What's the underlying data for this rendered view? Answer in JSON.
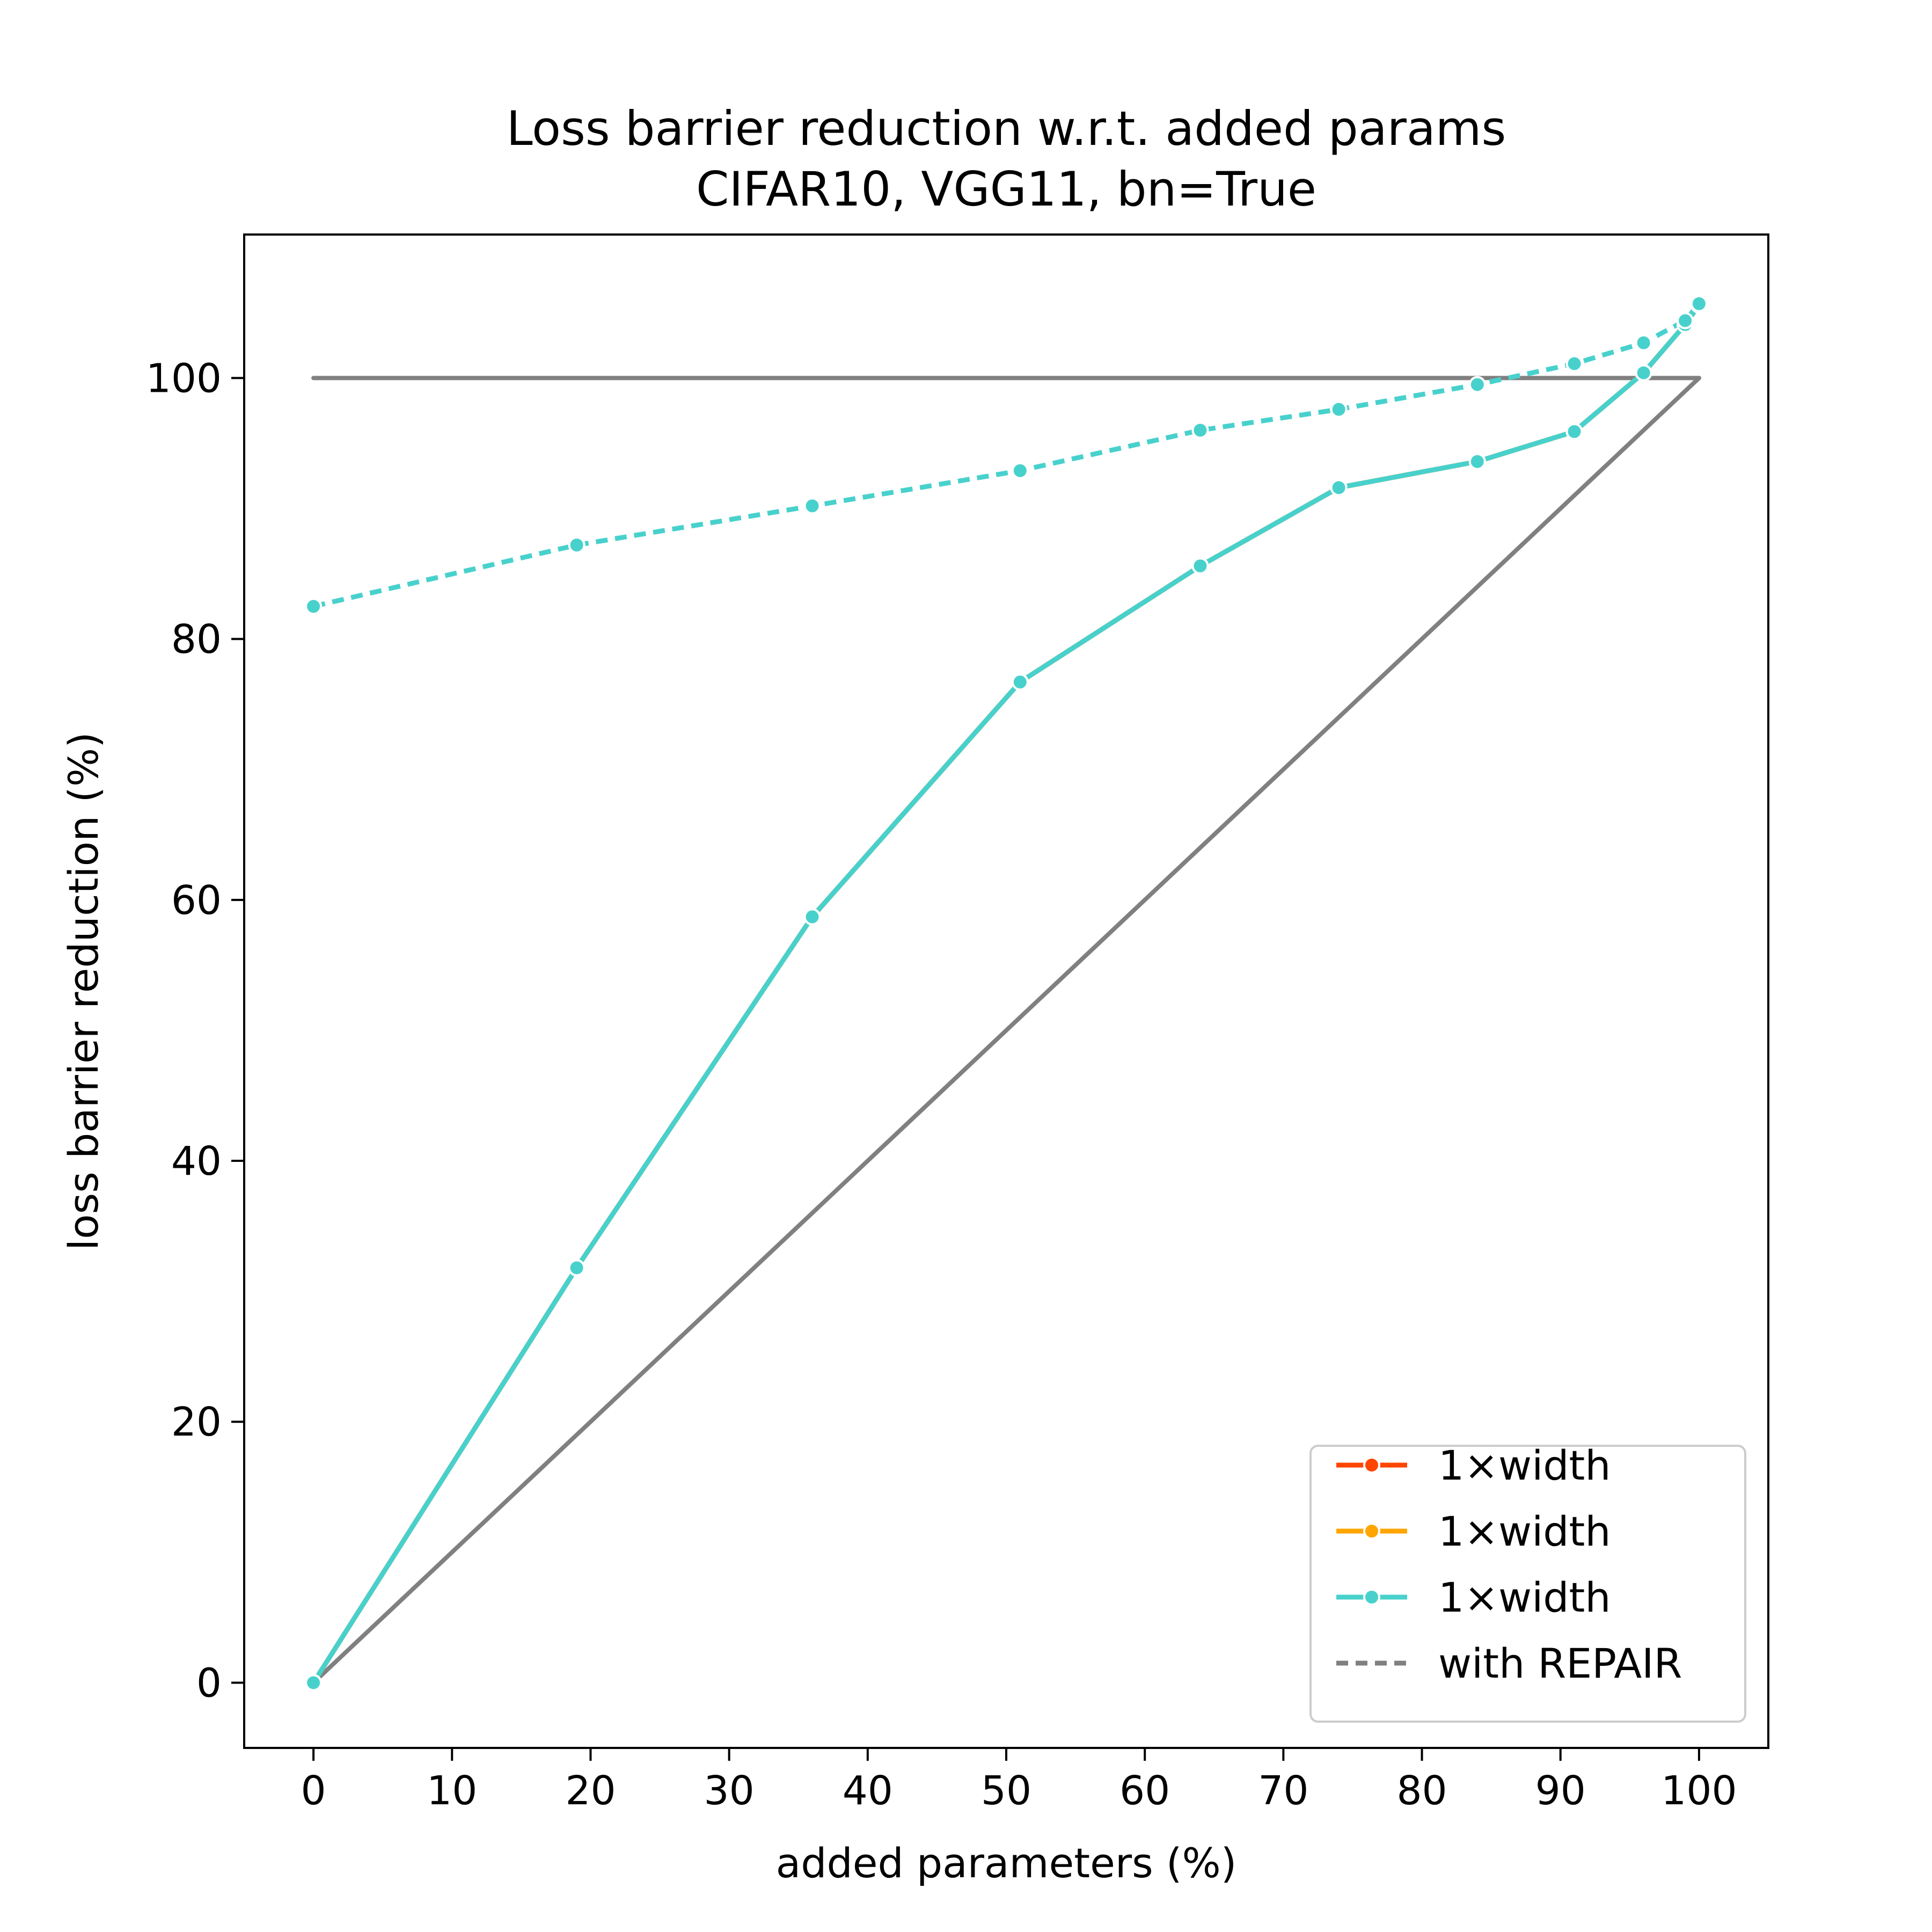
{
  "chart_data": {
    "type": "line",
    "title": "Loss barrier reduction w.r.t. added params",
    "subtitle": "CIFAR10, VGG11, bn=True",
    "xlabel": "added parameters (%)",
    "ylabel": "loss barrier reduction (%)",
    "xlim": [
      -5,
      105
    ],
    "ylim": [
      -5,
      111
    ],
    "xticks": [
      0,
      10,
      20,
      30,
      40,
      50,
      60,
      70,
      80,
      90,
      100
    ],
    "yticks": [
      0,
      20,
      40,
      60,
      80,
      100
    ],
    "grid": false,
    "legend_position": "bottom-right",
    "reference_lines": [
      {
        "x": [
          0,
          100
        ],
        "y": [
          100,
          100
        ],
        "color": "#808080"
      },
      {
        "x": [
          0,
          100
        ],
        "y": [
          0,
          100
        ],
        "color": "#808080"
      }
    ],
    "series": [
      {
        "name": "1×width",
        "color": "#ff4500",
        "style": "solid",
        "x": [
          0,
          19,
          36,
          51,
          64,
          74,
          84,
          91,
          96,
          99,
          100
        ],
        "y": [
          0,
          31.8,
          58.7,
          76.7,
          85.6,
          91.6,
          93.6,
          95.9,
          100.4,
          104.1,
          105.6
        ]
      },
      {
        "name": "1×width",
        "color": "#ffa500",
        "style": "solid",
        "x": [
          0,
          19,
          36,
          51,
          64,
          74,
          84,
          91,
          96,
          99,
          100
        ],
        "y": [
          0,
          31.8,
          58.7,
          76.7,
          85.6,
          91.6,
          93.6,
          95.9,
          100.4,
          104.1,
          105.6
        ]
      },
      {
        "name": "1×width",
        "color": "#48d1cc",
        "style": "solid",
        "x": [
          0,
          19,
          36,
          51,
          64,
          74,
          84,
          91,
          96,
          99,
          100
        ],
        "y": [
          0,
          31.8,
          58.7,
          76.7,
          85.6,
          91.6,
          93.6,
          95.9,
          100.4,
          104.1,
          105.6
        ]
      },
      {
        "name": "",
        "color": "#48d1cc",
        "style": "dotted",
        "x": [
          0,
          19,
          36,
          51,
          64,
          74,
          84,
          91,
          96,
          99,
          100
        ],
        "y": [
          82.5,
          87.2,
          90.2,
          92.9,
          96.0,
          97.6,
          99.5,
          101.1,
          102.7,
          104.4,
          105.7
        ]
      }
    ],
    "legend": [
      {
        "label": "1×width",
        "color": "#ff4500",
        "style": "solid",
        "marker": true
      },
      {
        "label": "1×width",
        "color": "#ffa500",
        "style": "solid",
        "marker": true
      },
      {
        "label": "1×width",
        "color": "#48d1cc",
        "style": "solid",
        "marker": true
      },
      {
        "label": "with REPAIR",
        "color": "#808080",
        "style": "dotted",
        "marker": false
      }
    ]
  }
}
